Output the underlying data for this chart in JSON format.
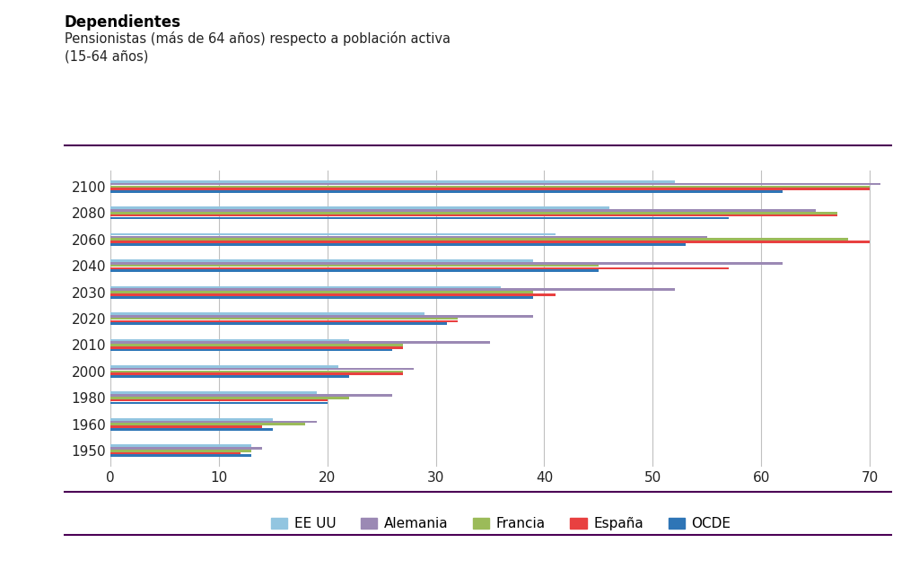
{
  "title_bold": "Dependientes",
  "title_sub": "Pensionistas (más de 64 años) respecto a población activa\n(15-64 años)",
  "years": [
    1950,
    1960,
    1980,
    2000,
    2010,
    2020,
    2030,
    2040,
    2060,
    2080,
    2100
  ],
  "series": {
    "EE UU": [
      13,
      15,
      19,
      21,
      22,
      29,
      36,
      39,
      41,
      46,
      52
    ],
    "Alemania": [
      14,
      19,
      26,
      28,
      35,
      39,
      52,
      62,
      55,
      65,
      71
    ],
    "Francia": [
      13,
      18,
      22,
      27,
      27,
      32,
      39,
      45,
      68,
      67,
      70
    ],
    "España": [
      12,
      14,
      20,
      27,
      27,
      32,
      41,
      57,
      70,
      67,
      70
    ],
    "OCDE": [
      13,
      15,
      20,
      22,
      26,
      31,
      39,
      45,
      53,
      57,
      62
    ]
  },
  "colors": {
    "EE UU": "#92C5E0",
    "Alemania": "#9B89B4",
    "Francia": "#9BBB59",
    "España": "#E84040",
    "OCDE": "#2E75B6"
  },
  "xlim": [
    0,
    72
  ],
  "xticks": [
    0,
    10,
    20,
    30,
    40,
    50,
    60,
    70
  ],
  "background_color": "#FFFFFF",
  "grid_color": "#C0C0C0"
}
